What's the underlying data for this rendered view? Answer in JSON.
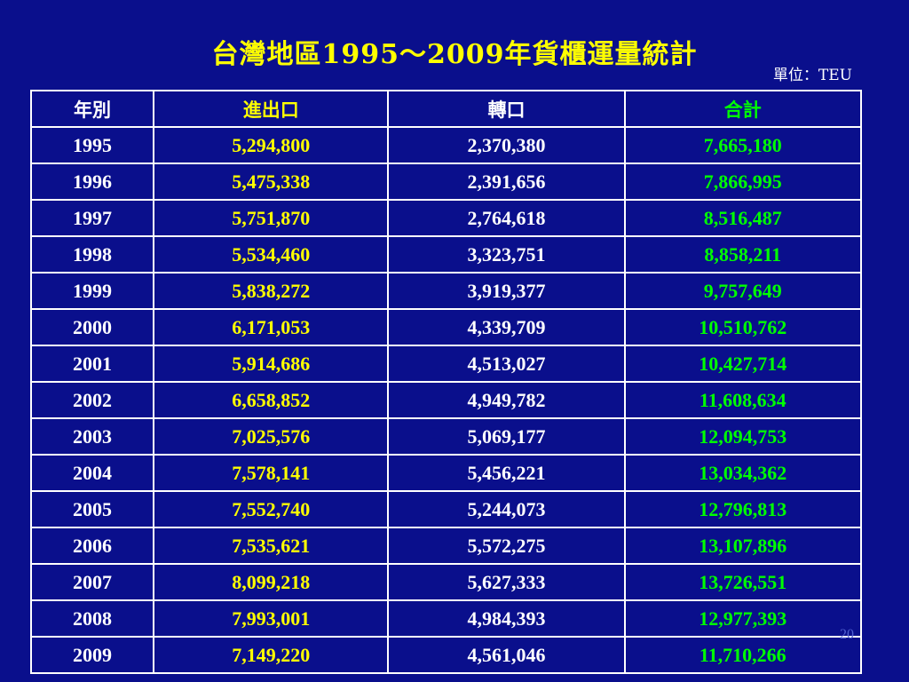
{
  "title": "台灣地區1995～2009年貨櫃運量統計",
  "unit_label": "單位：TEU",
  "page_number": "20",
  "colors": {
    "background": "#0a0f8c",
    "title": "#ffff00",
    "import_export": "#ffff00",
    "transship": "#ffffff",
    "total": "#00ff00"
  },
  "table": {
    "headers": [
      "年別",
      "進出口",
      "轉口",
      "合計"
    ],
    "rows": [
      [
        "1995",
        "5,294,800",
        "2,370,380",
        "7,665,180"
      ],
      [
        "1996",
        "5,475,338",
        "2,391,656",
        "7,866,995"
      ],
      [
        "1997",
        "5,751,870",
        "2,764,618",
        "8,516,487"
      ],
      [
        "1998",
        "5,534,460",
        "3,323,751",
        "8,858,211"
      ],
      [
        "1999",
        "5,838,272",
        "3,919,377",
        "9,757,649"
      ],
      [
        "2000",
        "6,171,053",
        "4,339,709",
        "10,510,762"
      ],
      [
        "2001",
        "5,914,686",
        "4,513,027",
        "10,427,714"
      ],
      [
        "2002",
        "6,658,852",
        "4,949,782",
        "11,608,634"
      ],
      [
        "2003",
        "7,025,576",
        "5,069,177",
        "12,094,753"
      ],
      [
        "2004",
        "7,578,141",
        "5,456,221",
        "13,034,362"
      ],
      [
        "2005",
        "7,552,740",
        "5,244,073",
        "12,796,813"
      ],
      [
        "2006",
        "7,535,621",
        "5,572,275",
        "13,107,896"
      ],
      [
        "2007",
        "8,099,218",
        "5,627,333",
        "13,726,551"
      ],
      [
        "2008",
        "7,993,001",
        "4,984,393",
        "12,977,393"
      ],
      [
        "2009",
        "7,149,220",
        "4,561,046",
        "11,710,266"
      ]
    ]
  }
}
